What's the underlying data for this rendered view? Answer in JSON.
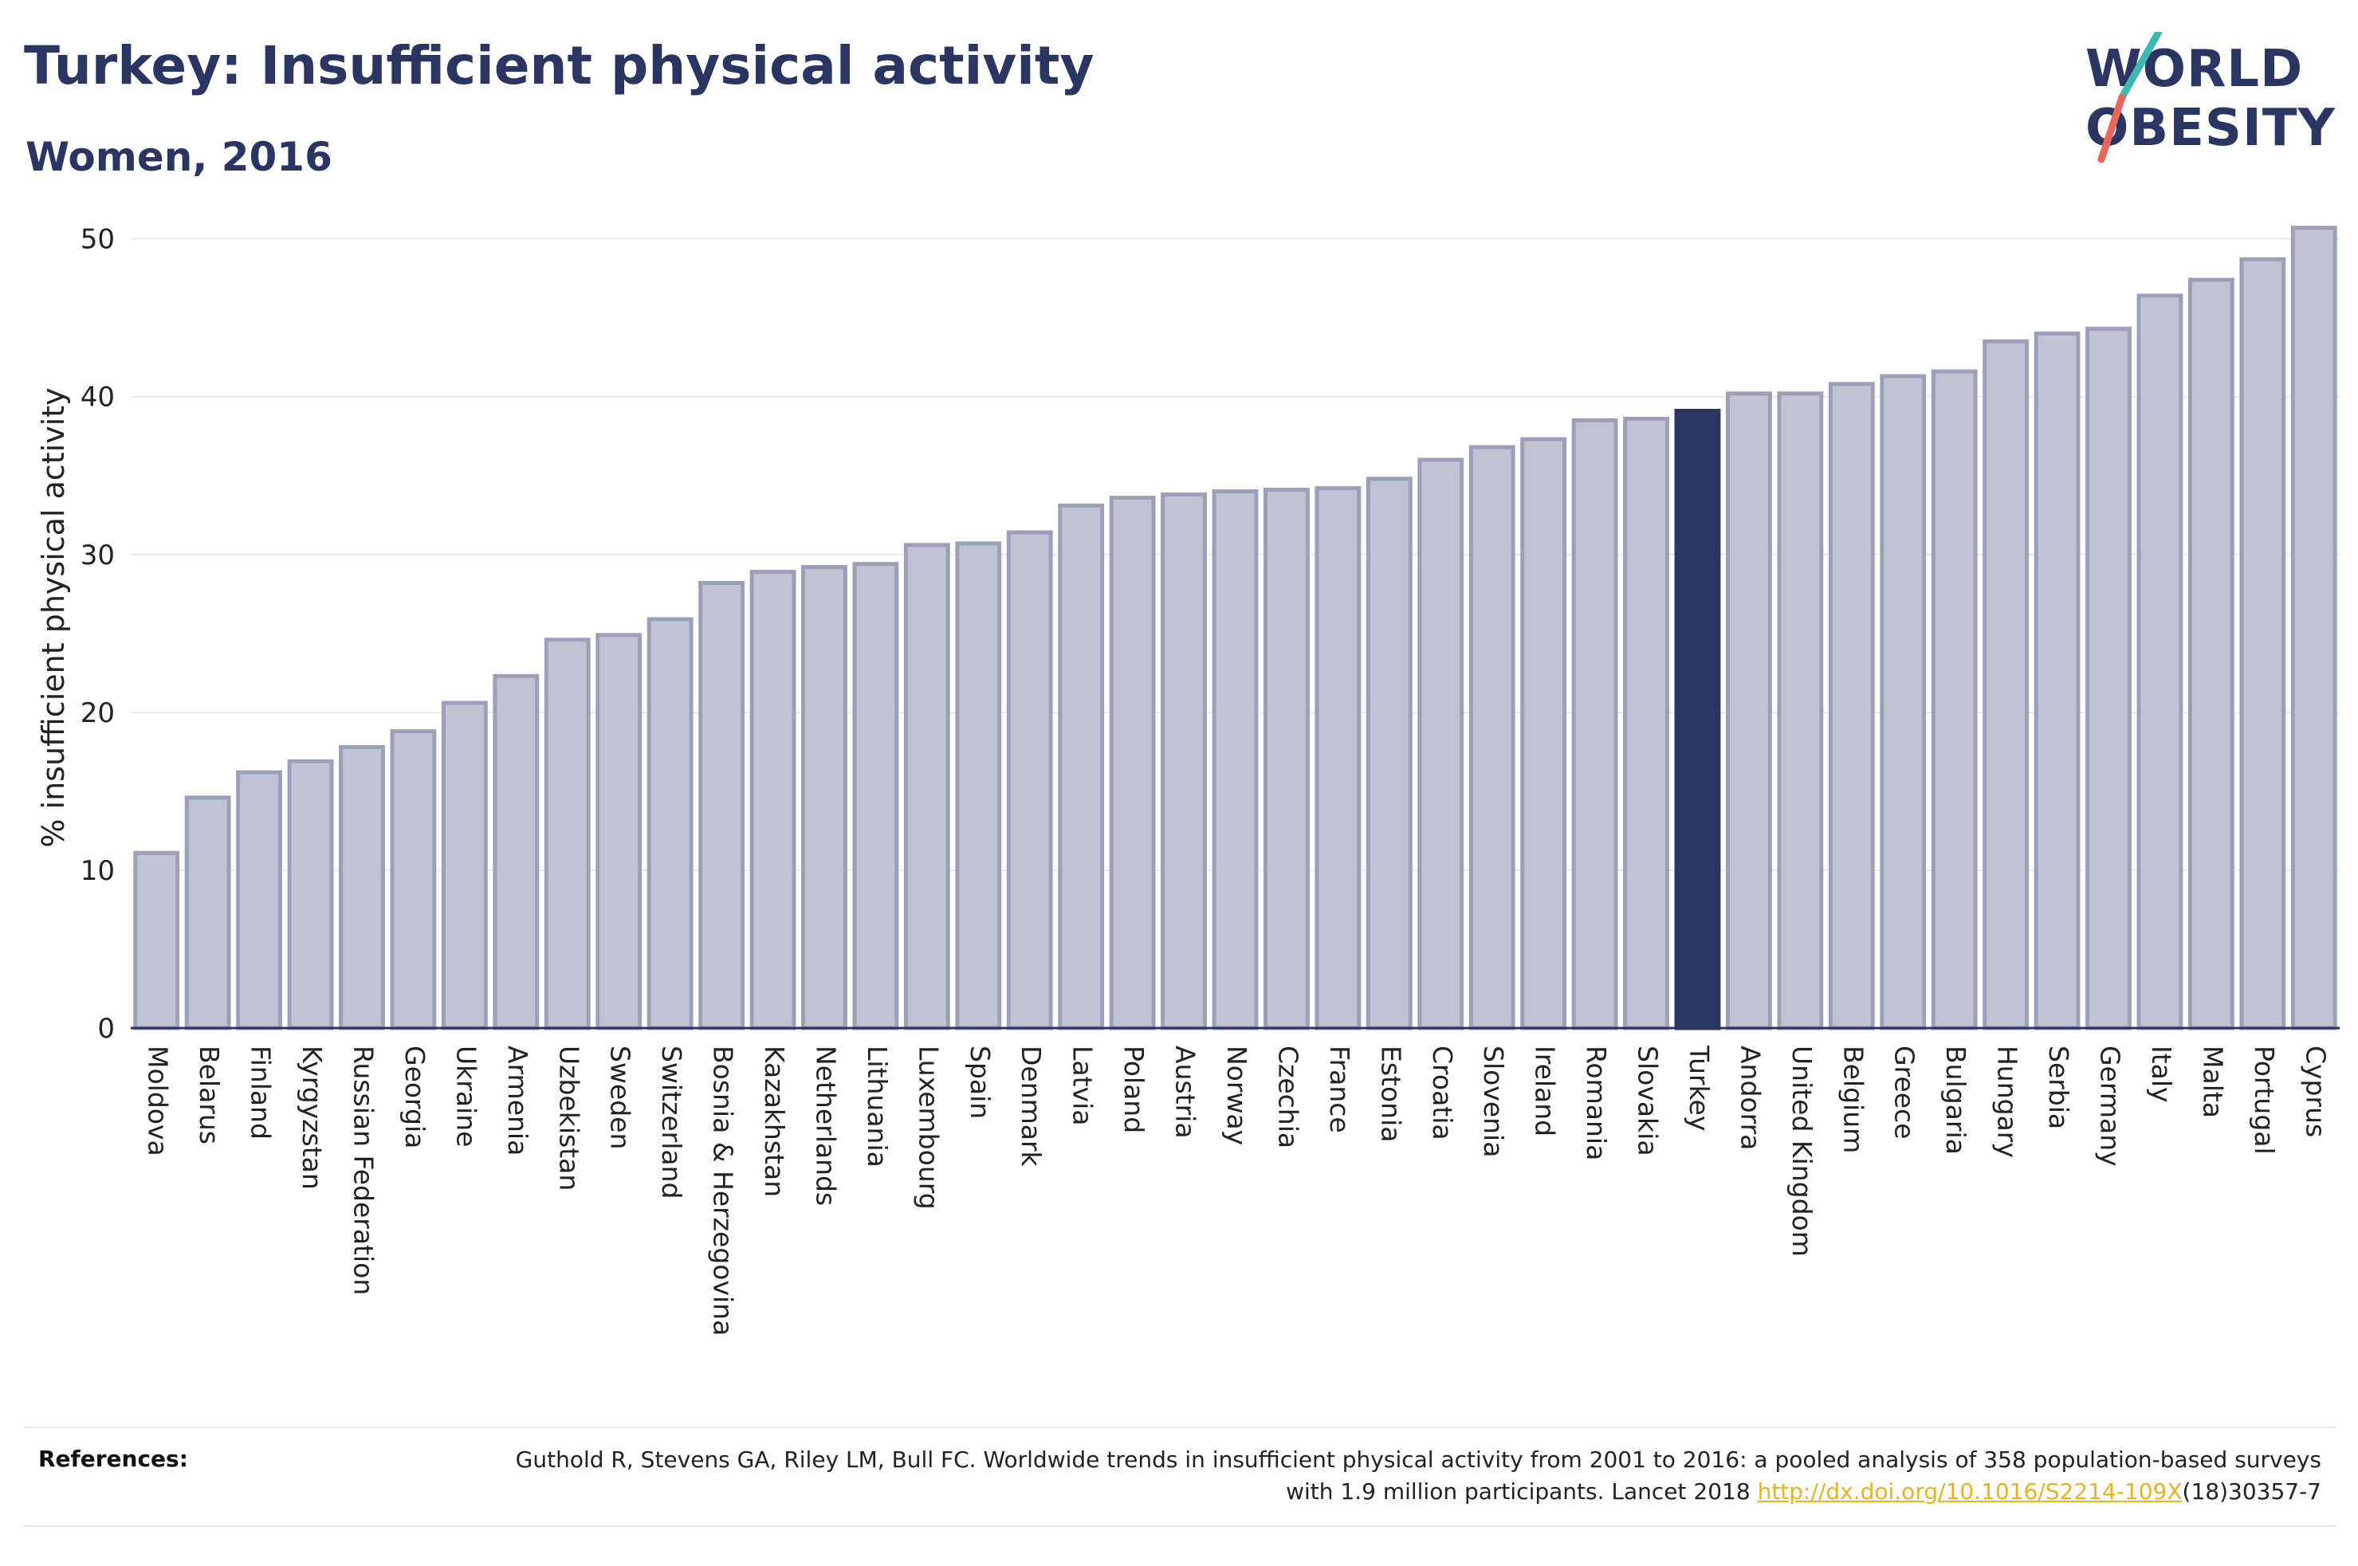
{
  "header": {
    "title": "Turkey: Insufficient physical activity",
    "subtitle": "Women, 2016"
  },
  "logo": {
    "line1": "WORLD",
    "line2": "OBESITY",
    "slash_colors": [
      "#3fb8b4",
      "#e8675c"
    ]
  },
  "colors": {
    "bar": "#c0c3d1",
    "bar_border": "#9ba0b8",
    "highlight": "#2b3561",
    "title": "#2b3561",
    "link": "#e8b323"
  },
  "chart_data": {
    "type": "bar",
    "title": "Turkey: Insufficient physical activity",
    "subtitle": "Women, 2016",
    "xlabel": "",
    "ylabel": "% insufficient physical activity",
    "ylim": [
      0,
      52
    ],
    "yticks": [
      0,
      10,
      20,
      30,
      40,
      50
    ],
    "grid": true,
    "highlight": "Turkey",
    "categories": [
      "Moldova",
      "Belarus",
      "Finland",
      "Kyrgyzstan",
      "Russian Federation",
      "Georgia",
      "Ukraine",
      "Armenia",
      "Uzbekistan",
      "Sweden",
      "Switzerland",
      "Bosnia & Herzegovina",
      "Kazakhstan",
      "Netherlands",
      "Lithuania",
      "Luxembourg",
      "Spain",
      "Denmark",
      "Latvia",
      "Poland",
      "Austria",
      "Norway",
      "Czechia",
      "France",
      "Estonia",
      "Croatia",
      "Slovenia",
      "Ireland",
      "Romania",
      "Slovakia",
      "Turkey",
      "Andorra",
      "United Kingdom",
      "Belgium",
      "Greece",
      "Bulgaria",
      "Hungary",
      "Serbia",
      "Germany",
      "Italy",
      "Malta",
      "Portugal",
      "Cyprus"
    ],
    "values": [
      11.1,
      14.6,
      16.2,
      16.9,
      17.8,
      18.8,
      20.6,
      22.3,
      24.6,
      24.9,
      25.9,
      28.2,
      28.9,
      29.2,
      29.4,
      30.6,
      30.7,
      31.4,
      33.1,
      33.6,
      33.8,
      34.0,
      34.1,
      34.2,
      34.8,
      36.0,
      36.8,
      37.3,
      38.5,
      38.6,
      39.1,
      40.2,
      40.2,
      40.8,
      41.3,
      41.6,
      43.5,
      44.0,
      44.3,
      46.4,
      47.4,
      48.7,
      50.7
    ]
  },
  "references": {
    "label": "References:",
    "text": "Guthold R, Stevens GA, Riley LM, Bull FC. Worldwide trends in insufficient physical activity from 2001 to 2016: a pooled analysis of 358 population-based surveys with 1.9 million participants. Lancet 2018 ",
    "link": "http://dx.doi.org/10.1016/S2214-109X",
    "suffix": "(18)30357-7"
  }
}
